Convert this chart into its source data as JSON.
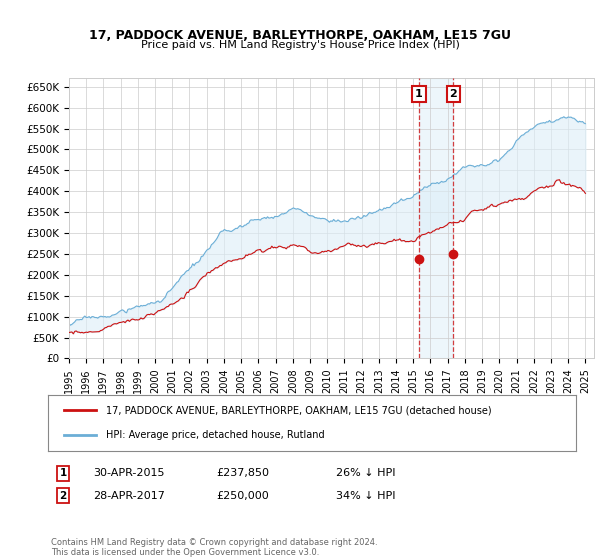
{
  "title": "17, PADDOCK AVENUE, BARLEYTHORPE, OAKHAM, LE15 7GU",
  "subtitle": "Price paid vs. HM Land Registry's House Price Index (HPI)",
  "legend_line1": "17, PADDOCK AVENUE, BARLEYTHORPE, OAKHAM, LE15 7GU (detached house)",
  "legend_line2": "HPI: Average price, detached house, Rutland",
  "transaction1_date": "30-APR-2015",
  "transaction1_price": "£237,850",
  "transaction1_hpi": "26% ↓ HPI",
  "transaction2_date": "28-APR-2017",
  "transaction2_price": "£250,000",
  "transaction2_hpi": "34% ↓ HPI",
  "footer": "Contains HM Land Registry data © Crown copyright and database right 2024.\nThis data is licensed under the Open Government Licence v3.0.",
  "hpi_color": "#6baed6",
  "price_color": "#cc1111",
  "marker_color": "#cc1111",
  "annotation_box_color": "#cc1111",
  "ylim_min": 0,
  "ylim_max": 670000,
  "yticks": [
    0,
    50000,
    100000,
    150000,
    200000,
    250000,
    300000,
    350000,
    400000,
    450000,
    500000,
    550000,
    600000,
    650000
  ],
  "year_start": 1995,
  "year_end": 2025,
  "transaction1_year": 2015.33,
  "transaction2_year": 2017.33,
  "bg_color": "#ffffff",
  "grid_color": "#cccccc",
  "hpi_band_color": "#ddeef8"
}
